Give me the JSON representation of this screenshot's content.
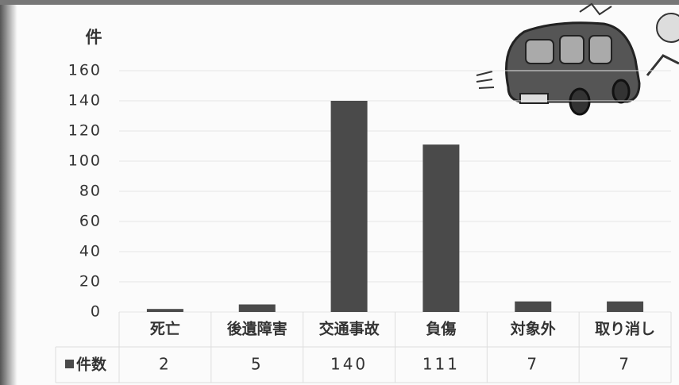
{
  "chart_data": {
    "type": "bar",
    "y_label": "件",
    "categories": [
      "死亡",
      "後遺障害",
      "交通事故",
      "負傷",
      "対象外",
      "取り消し"
    ],
    "series": [
      {
        "name": "件数",
        "color": "#4a4a4a",
        "values": [
          2,
          5,
          140,
          111,
          7,
          7
        ]
      }
    ],
    "ylim": [
      0,
      160
    ],
    "yticks": [
      0,
      20,
      40,
      60,
      80,
      100,
      120,
      140,
      160
    ],
    "grid": true
  }
}
